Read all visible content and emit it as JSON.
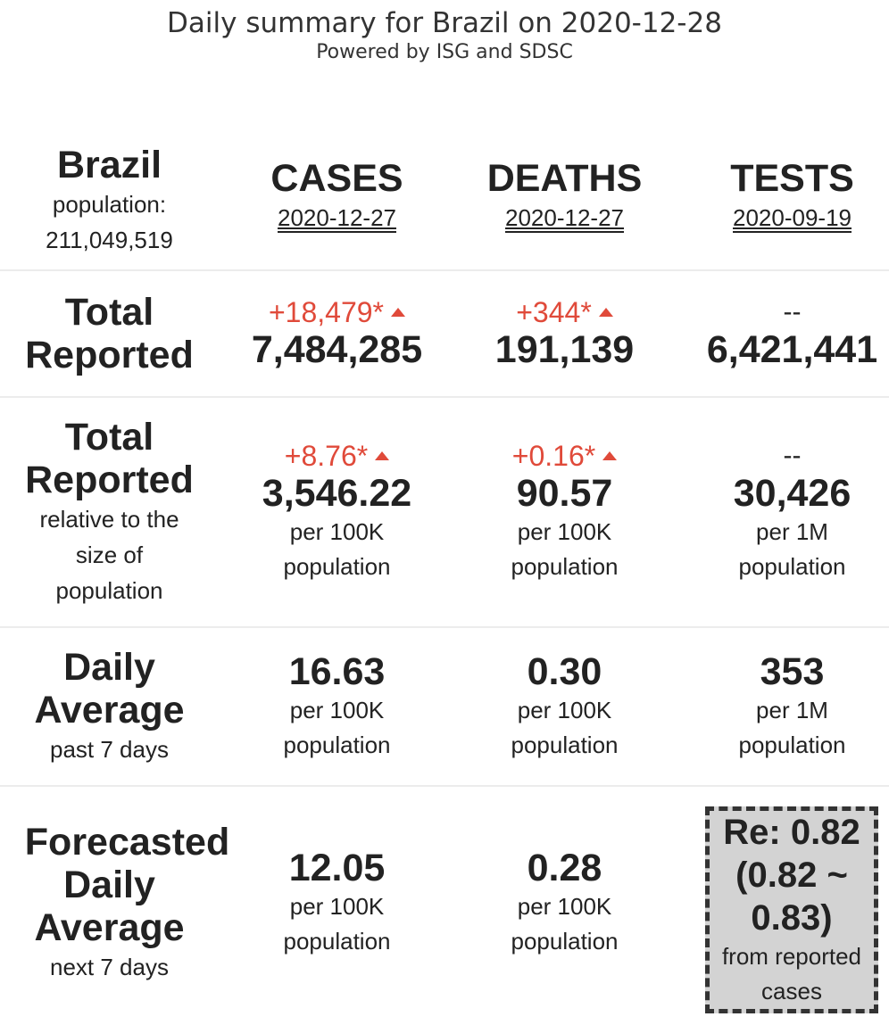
{
  "header": {
    "title": "Daily summary for Brazil on 2020-12-28",
    "subtitle": "Powered by ISG and SDSC"
  },
  "country": {
    "name": "Brazil",
    "population_label": "population:",
    "population": "211,049,519"
  },
  "columns": [
    {
      "label": "CASES",
      "date": "2020-12-27"
    },
    {
      "label": "DEATHS",
      "date": "2020-12-27"
    },
    {
      "label": "TESTS",
      "date": "2020-09-19"
    }
  ],
  "rows": {
    "total_reported": {
      "label_line1": "Total",
      "label_line2": "Reported",
      "cases": {
        "delta": "+18,479*",
        "value": "7,484,285"
      },
      "deaths": {
        "delta": "+344*",
        "value": "191,139"
      },
      "tests": {
        "delta": "--",
        "value": "6,421,441"
      }
    },
    "relative": {
      "label_line1": "Total",
      "label_line2": "Reported",
      "sub_line1": "relative to the",
      "sub_line2": "size of",
      "sub_line3": "population",
      "cases": {
        "delta": "+8.76*",
        "value": "3,546.22",
        "unit1": "per 100K",
        "unit2": "population"
      },
      "deaths": {
        "delta": "+0.16*",
        "value": "90.57",
        "unit1": "per 100K",
        "unit2": "population"
      },
      "tests": {
        "delta": "--",
        "value": "30,426",
        "unit1": "per 1M",
        "unit2": "population"
      }
    },
    "daily_average": {
      "label_line1": "Daily",
      "label_line2": "Average",
      "sub": "past 7 days",
      "cases": {
        "value": "16.63",
        "unit1": "per 100K",
        "unit2": "population"
      },
      "deaths": {
        "value": "0.30",
        "unit1": "per 100K",
        "unit2": "population"
      },
      "tests": {
        "value": "353",
        "unit1": "per 1M",
        "unit2": "population"
      }
    },
    "forecast": {
      "label_line1": "Forecasted",
      "label_line2": "Daily",
      "label_line3": "Average",
      "sub": "next 7 days",
      "cases": {
        "value": "12.05",
        "unit1": "per 100K",
        "unit2": "population"
      },
      "deaths": {
        "value": "0.28",
        "unit1": "per 100K",
        "unit2": "population"
      },
      "re": {
        "line1": "Re: 0.82",
        "line2": "(0.82 ~",
        "line3": "0.83)",
        "sub1": "from reported",
        "sub2": "cases"
      }
    }
  },
  "colors": {
    "increase": "#e04a3a",
    "text": "#222222",
    "re_box_bg": "#d3d3d3"
  }
}
